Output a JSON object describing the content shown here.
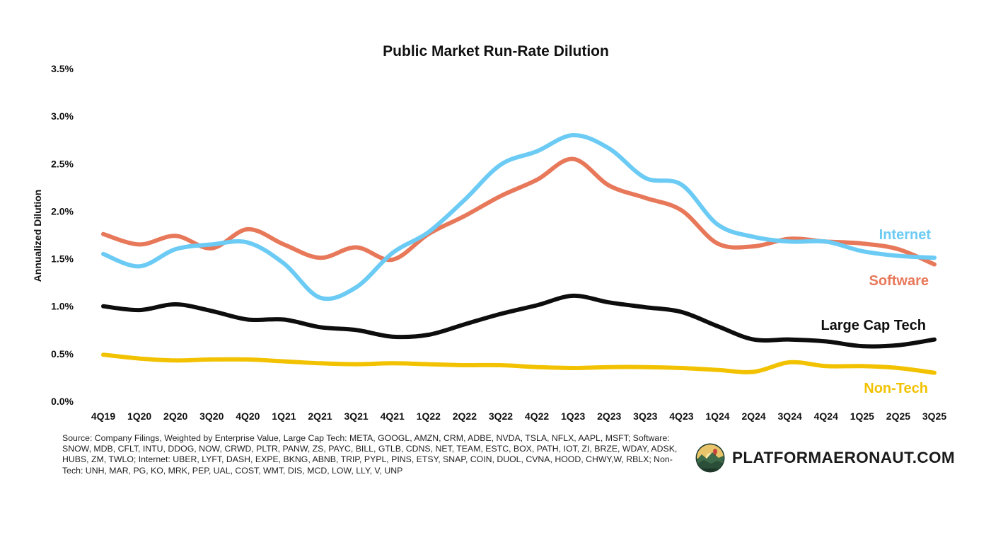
{
  "chart_data": {
    "type": "line",
    "title": "Public Market Run-Rate Dilution",
    "xlabel": "",
    "ylabel": "Annualized Dilution",
    "ylim": [
      0,
      3.5
    ],
    "yticks": [
      "0.0%",
      "0.5%",
      "1.0%",
      "1.5%",
      "2.0%",
      "2.5%",
      "3.0%",
      "3.5%"
    ],
    "grid": false,
    "legend": "inline labels at right",
    "categories": [
      "4Q19",
      "1Q20",
      "2Q20",
      "3Q20",
      "4Q20",
      "1Q21",
      "2Q21",
      "3Q21",
      "4Q21",
      "1Q22",
      "2Q22",
      "3Q22",
      "4Q22",
      "1Q23",
      "2Q23",
      "3Q23",
      "4Q23",
      "1Q24",
      "2Q24",
      "3Q24",
      "4Q24",
      "1Q25",
      "2Q25",
      "3Q25"
    ],
    "series": [
      {
        "name": "Software",
        "color": "#E8785A",
        "values": [
          1.76,
          1.65,
          1.74,
          1.61,
          1.81,
          1.65,
          1.51,
          1.62,
          1.49,
          1.76,
          1.95,
          2.16,
          2.33,
          2.55,
          2.27,
          2.14,
          2.01,
          1.66,
          1.63,
          1.71,
          1.68,
          1.66,
          1.6,
          1.44
        ]
      },
      {
        "name": "Internet",
        "color": "#6CCBF4",
        "values": [
          1.55,
          1.42,
          1.6,
          1.65,
          1.67,
          1.45,
          1.09,
          1.2,
          1.56,
          1.78,
          2.12,
          2.49,
          2.63,
          2.8,
          2.66,
          2.35,
          2.28,
          1.86,
          1.73,
          1.68,
          1.68,
          1.58,
          1.53,
          1.51
        ]
      },
      {
        "name": "Large Cap Tech",
        "color": "#0d0d0d",
        "values": [
          1.0,
          0.96,
          1.02,
          0.95,
          0.86,
          0.86,
          0.78,
          0.75,
          0.68,
          0.7,
          0.81,
          0.92,
          1.01,
          1.11,
          1.04,
          0.99,
          0.94,
          0.79,
          0.65,
          0.65,
          0.63,
          0.58,
          0.59,
          0.65
        ]
      },
      {
        "name": "Non-Tech",
        "color": "#F2C200",
        "values": [
          0.49,
          0.45,
          0.43,
          0.44,
          0.44,
          0.42,
          0.4,
          0.39,
          0.4,
          0.39,
          0.38,
          0.38,
          0.36,
          0.35,
          0.36,
          0.36,
          0.35,
          0.33,
          0.31,
          0.41,
          0.37,
          0.37,
          0.35,
          0.3
        ]
      }
    ]
  },
  "footer": {
    "source": "Source: Company Filings, Weighted by Enterprise Value, Large Cap Tech: META, GOOGL, AMZN, CRM, ADBE, NVDA, TSLA, NFLX, AAPL, MSFT; Software: SNOW, MDB, CFLT, INTU, DDOG, NOW, CRWD, PLTR, PANW, ZS, PAYC, BILL, GTLB, CDNS, NET, TEAM, ESTC, BOX, PATH, IOT, ZI, BRZE, WDAY, ADSK, HUBS, ZM, TWLO; Internet: UBER, LYFT, DASH, EXPE, BKNG, ABNB, TRIP, PYPL, PINS, ETSY, SNAP, COIN, DUOL, CVNA, HOOD, CHWY,W, RBLX; Non-Tech: UNH, MAR, PG, KO, MRK, PEP, UAL, COST, WMT, DIS, MCD, LOW, LLY, V, UNP",
    "brand": "PLATFORMAERONAUT.COM",
    "logo_icon": "mountain-landscape-logo-icon"
  }
}
